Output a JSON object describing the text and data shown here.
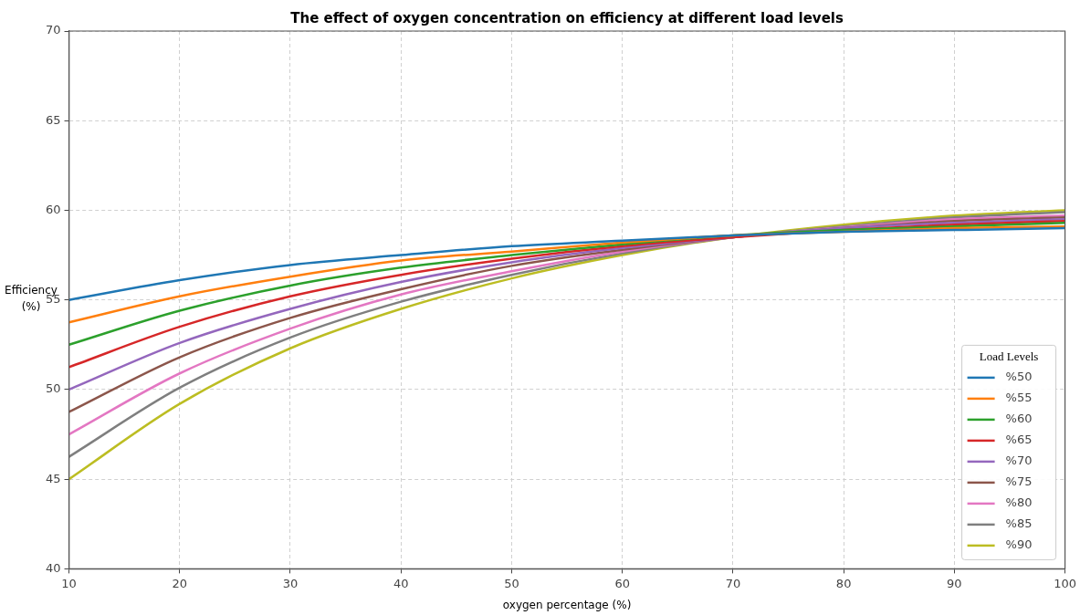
{
  "chart_data": {
    "type": "line",
    "title": "The effect of oxygen concentration on efficiency at different load levels",
    "xlabel": "oxygen percentage (%)",
    "ylabel": "Efficiency (%)",
    "legend_title": "Load Levels",
    "x": [
      10,
      20,
      30,
      40,
      50,
      60,
      70,
      80,
      90,
      100
    ],
    "series": [
      {
        "name": "%50",
        "color": "#1f77b4",
        "values": [
          55,
          56.1,
          56.95,
          57.5,
          58.0,
          58.3,
          58.6,
          58.8,
          58.9,
          59.0
        ]
      },
      {
        "name": "%55",
        "color": "#ff7f0e",
        "values": [
          53.75,
          55.2,
          56.3,
          57.2,
          57.7,
          58.2,
          58.6,
          58.8,
          59.0,
          59.1
        ]
      },
      {
        "name": "%60",
        "color": "#2ca02c",
        "values": [
          52.5,
          54.4,
          55.8,
          56.8,
          57.5,
          58.1,
          58.6,
          58.9,
          59.1,
          59.3
        ]
      },
      {
        "name": "%65",
        "color": "#d62728",
        "values": [
          51.25,
          53.5,
          55.2,
          56.4,
          57.3,
          58.0,
          58.5,
          58.9,
          59.2,
          59.4
        ]
      },
      {
        "name": "%70",
        "color": "#9467bd",
        "values": [
          50,
          52.6,
          54.5,
          56.0,
          57.1,
          57.9,
          58.5,
          59.0,
          59.3,
          59.5
        ]
      },
      {
        "name": "%75",
        "color": "#8c564b",
        "values": [
          48.75,
          51.8,
          54.0,
          55.6,
          56.9,
          57.8,
          58.5,
          59.0,
          59.4,
          59.6
        ]
      },
      {
        "name": "%80",
        "color": "#e377c2",
        "values": [
          47.5,
          50.9,
          53.4,
          55.3,
          56.6,
          57.7,
          58.5,
          59.05,
          59.5,
          59.7
        ]
      },
      {
        "name": "%85",
        "color": "#7f7f7f",
        "values": [
          46.25,
          50.1,
          52.9,
          54.9,
          56.4,
          57.6,
          58.5,
          59.1,
          59.6,
          59.9
        ]
      },
      {
        "name": "%90",
        "color": "#bcbd22",
        "values": [
          45,
          49.2,
          52.3,
          54.5,
          56.2,
          57.5,
          58.5,
          59.2,
          59.7,
          60.0
        ]
      }
    ],
    "xlim": [
      10,
      100
    ],
    "xticks": [
      10,
      20,
      30,
      40,
      50,
      60,
      70,
      80,
      90,
      100
    ],
    "ylim": [
      40,
      70
    ],
    "yticks": [
      40,
      45,
      50,
      55,
      60,
      65,
      70
    ],
    "grid": true,
    "legend": "bottom right",
    "marker": "none",
    "line_style": "solid"
  }
}
